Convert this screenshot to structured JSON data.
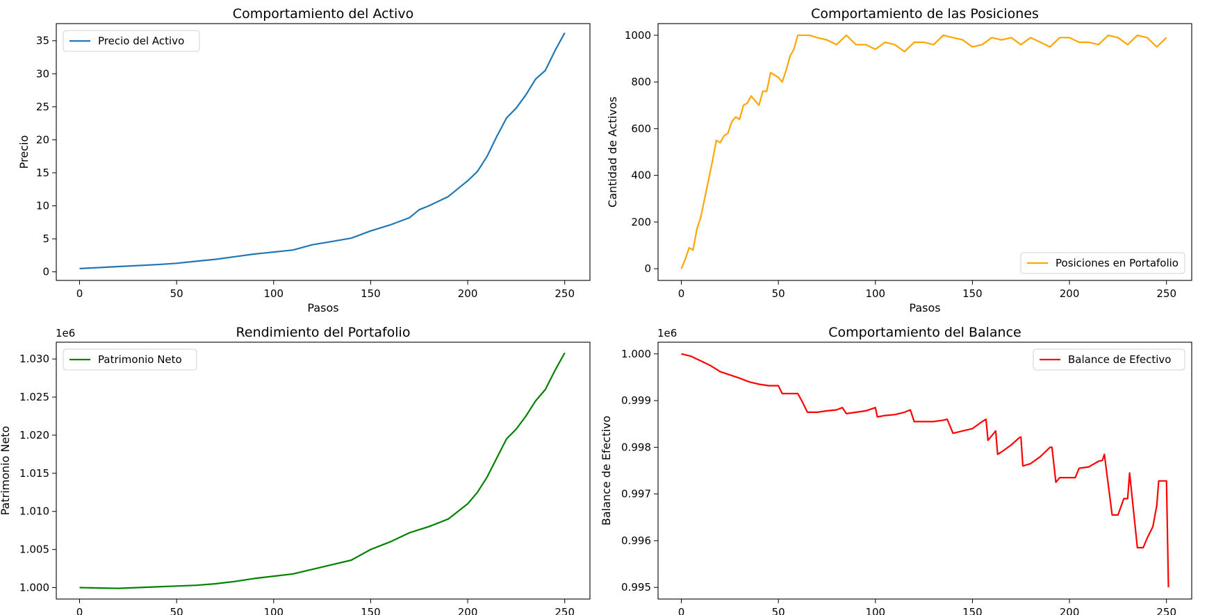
{
  "chart_data": [
    {
      "type": "line",
      "title": "Comportamiento del Activo",
      "xlabel": "Pasos",
      "ylabel": "Precio",
      "offset_label": "",
      "xlim": [
        -12,
        263
      ],
      "ylim": [
        -1.3,
        37.6
      ],
      "xticks": [
        0,
        50,
        100,
        150,
        200,
        250
      ],
      "xtick_labels": [
        "0",
        "50",
        "100",
        "150",
        "200",
        "250"
      ],
      "yticks": [
        0,
        5,
        10,
        15,
        20,
        25,
        30,
        35
      ],
      "ytick_labels": [
        "0",
        "5",
        "10",
        "15",
        "20",
        "25",
        "30",
        "35"
      ],
      "legend_position": "upper-left",
      "series": [
        {
          "name": "Precio del Activo",
          "color": "#1f77b4",
          "x": [
            0,
            10,
            20,
            30,
            40,
            50,
            60,
            70,
            80,
            90,
            100,
            110,
            120,
            130,
            140,
            150,
            160,
            170,
            175,
            180,
            190,
            200,
            205,
            210,
            215,
            220,
            225,
            230,
            235,
            240,
            245,
            250
          ],
          "y": [
            0.5,
            0.65,
            0.8,
            0.95,
            1.1,
            1.3,
            1.6,
            1.9,
            2.3,
            2.7,
            3.0,
            3.3,
            4.1,
            4.6,
            5.1,
            6.2,
            7.1,
            8.2,
            9.4,
            10.0,
            11.4,
            13.8,
            15.2,
            17.5,
            20.5,
            23.3,
            24.8,
            26.8,
            29.2,
            30.5,
            33.5,
            36.2
          ]
        }
      ]
    },
    {
      "type": "line",
      "title": "Comportamiento de las Posiciones",
      "xlabel": "Pasos",
      "ylabel": "Cantidad de Activos",
      "offset_label": "",
      "xlim": [
        -12,
        263
      ],
      "ylim": [
        -50,
        1050
      ],
      "xticks": [
        0,
        50,
        100,
        150,
        200,
        250
      ],
      "xtick_labels": [
        "0",
        "50",
        "100",
        "150",
        "200",
        "250"
      ],
      "yticks": [
        0,
        200,
        400,
        600,
        800,
        1000
      ],
      "ytick_labels": [
        "0",
        "200",
        "400",
        "600",
        "800",
        "1000"
      ],
      "legend_position": "lower-right",
      "series": [
        {
          "name": "Posiciones en Portafolio",
          "color": "#ffa500",
          "x": [
            0,
            2,
            4,
            6,
            8,
            10,
            12,
            14,
            16,
            18,
            20,
            22,
            24,
            26,
            28,
            30,
            32,
            34,
            36,
            38,
            40,
            42,
            44,
            46,
            48,
            50,
            52,
            54,
            56,
            58,
            60,
            62,
            64,
            66,
            70,
            75,
            80,
            85,
            90,
            95,
            100,
            105,
            110,
            115,
            120,
            125,
            130,
            135,
            140,
            145,
            150,
            155,
            160,
            165,
            170,
            175,
            180,
            185,
            190,
            195,
            200,
            205,
            210,
            215,
            220,
            225,
            230,
            235,
            240,
            245,
            250
          ],
          "y": [
            0,
            40,
            90,
            80,
            170,
            220,
            300,
            380,
            460,
            550,
            540,
            570,
            580,
            630,
            650,
            640,
            700,
            710,
            740,
            720,
            700,
            760,
            760,
            840,
            830,
            820,
            800,
            850,
            910,
            940,
            1000,
            1000,
            1000,
            1000,
            990,
            980,
            960,
            1000,
            960,
            960,
            940,
            970,
            960,
            930,
            970,
            970,
            960,
            1000,
            990,
            980,
            950,
            960,
            990,
            980,
            990,
            960,
            990,
            970,
            950,
            990,
            990,
            970,
            970,
            960,
            1000,
            990,
            960,
            1000,
            990,
            950,
            990
          ]
        }
      ]
    },
    {
      "type": "line",
      "title": "Rendimiento del Portafolio",
      "xlabel": "",
      "ylabel": "Patrimonio Neto",
      "offset_label": "1e6",
      "xlim": [
        -12,
        263
      ],
      "ylim": [
        0.9985,
        1.0322
      ],
      "xticks": [
        0,
        50,
        100,
        150,
        200,
        250
      ],
      "xtick_labels": [
        "0",
        "50",
        "100",
        "150",
        "200",
        "250"
      ],
      "yticks": [
        1.0,
        1.005,
        1.01,
        1.015,
        1.02,
        1.025,
        1.03
      ],
      "ytick_labels": [
        "1.000",
        "1.005",
        "1.010",
        "1.015",
        "1.020",
        "1.025",
        "1.030"
      ],
      "legend_position": "upper-left",
      "series": [
        {
          "name": "Patrimonio Neto",
          "color": "#008000",
          "x": [
            0,
            10,
            20,
            30,
            40,
            50,
            60,
            70,
            80,
            90,
            100,
            110,
            120,
            130,
            140,
            150,
            160,
            170,
            175,
            180,
            190,
            200,
            205,
            210,
            215,
            220,
            225,
            230,
            235,
            240,
            245,
            250
          ],
          "y": [
            1.0,
            0.99995,
            0.9999,
            1.0,
            1.0001,
            1.0002,
            1.0003,
            1.0005,
            1.0008,
            1.0012,
            1.0015,
            1.0018,
            1.0024,
            1.003,
            1.0036,
            1.005,
            1.006,
            1.0072,
            1.0076,
            1.008,
            1.009,
            1.011,
            1.0125,
            1.0145,
            1.017,
            1.0195,
            1.0208,
            1.0225,
            1.0245,
            1.026,
            1.0285,
            1.0308
          ]
        }
      ]
    },
    {
      "type": "line",
      "title": "Comportamiento del Balance",
      "xlabel": "",
      "ylabel": "Balance de Efectivo",
      "offset_label": "1e6",
      "xlim": [
        -12,
        263
      ],
      "ylim": [
        0.99475,
        1.00025
      ],
      "xticks": [
        0,
        50,
        100,
        150,
        200,
        250
      ],
      "xtick_labels": [
        "0",
        "50",
        "100",
        "150",
        "200",
        "250"
      ],
      "yticks": [
        0.995,
        0.996,
        0.997,
        0.998,
        0.999,
        1.0
      ],
      "ytick_labels": [
        "0.995",
        "0.996",
        "0.997",
        "0.998",
        "0.999",
        "1.000"
      ],
      "legend_position": "upper-right",
      "series": [
        {
          "name": "Balance de Efectivo",
          "color": "#ff0000",
          "x": [
            0,
            5,
            10,
            15,
            20,
            25,
            30,
            35,
            40,
            45,
            50,
            52,
            55,
            60,
            62,
            65,
            70,
            75,
            80,
            83,
            85,
            90,
            95,
            100,
            101,
            105,
            110,
            115,
            118,
            120,
            125,
            130,
            135,
            137,
            140,
            145,
            150,
            155,
            157,
            158,
            162,
            163,
            165,
            170,
            174,
            175,
            176,
            180,
            185,
            190,
            191,
            193,
            195,
            200,
            203,
            205,
            210,
            215,
            217,
            218,
            222,
            225,
            228,
            230,
            231,
            235,
            238,
            240,
            243,
            245,
            246,
            250,
            251
          ],
          "y": [
            1.0,
            0.99995,
            0.99985,
            0.99975,
            0.99962,
            0.99955,
            0.99948,
            0.9994,
            0.99935,
            0.99932,
            0.99932,
            0.99915,
            0.99915,
            0.99915,
            0.999,
            0.99875,
            0.99875,
            0.99878,
            0.9988,
            0.99885,
            0.99872,
            0.99875,
            0.99878,
            0.99885,
            0.99865,
            0.99868,
            0.9987,
            0.99875,
            0.9988,
            0.99855,
            0.99855,
            0.99855,
            0.99858,
            0.9986,
            0.9983,
            0.99835,
            0.9984,
            0.99855,
            0.9986,
            0.99815,
            0.99835,
            0.99785,
            0.9979,
            0.99805,
            0.9982,
            0.99822,
            0.9976,
            0.99765,
            0.9978,
            0.998,
            0.998,
            0.99725,
            0.99735,
            0.99735,
            0.99735,
            0.99755,
            0.99758,
            0.9977,
            0.99772,
            0.99785,
            0.99655,
            0.99655,
            0.9969,
            0.9969,
            0.99745,
            0.99585,
            0.99585,
            0.99605,
            0.9963,
            0.99675,
            0.99728,
            0.99728,
            0.995
          ]
        }
      ]
    }
  ]
}
